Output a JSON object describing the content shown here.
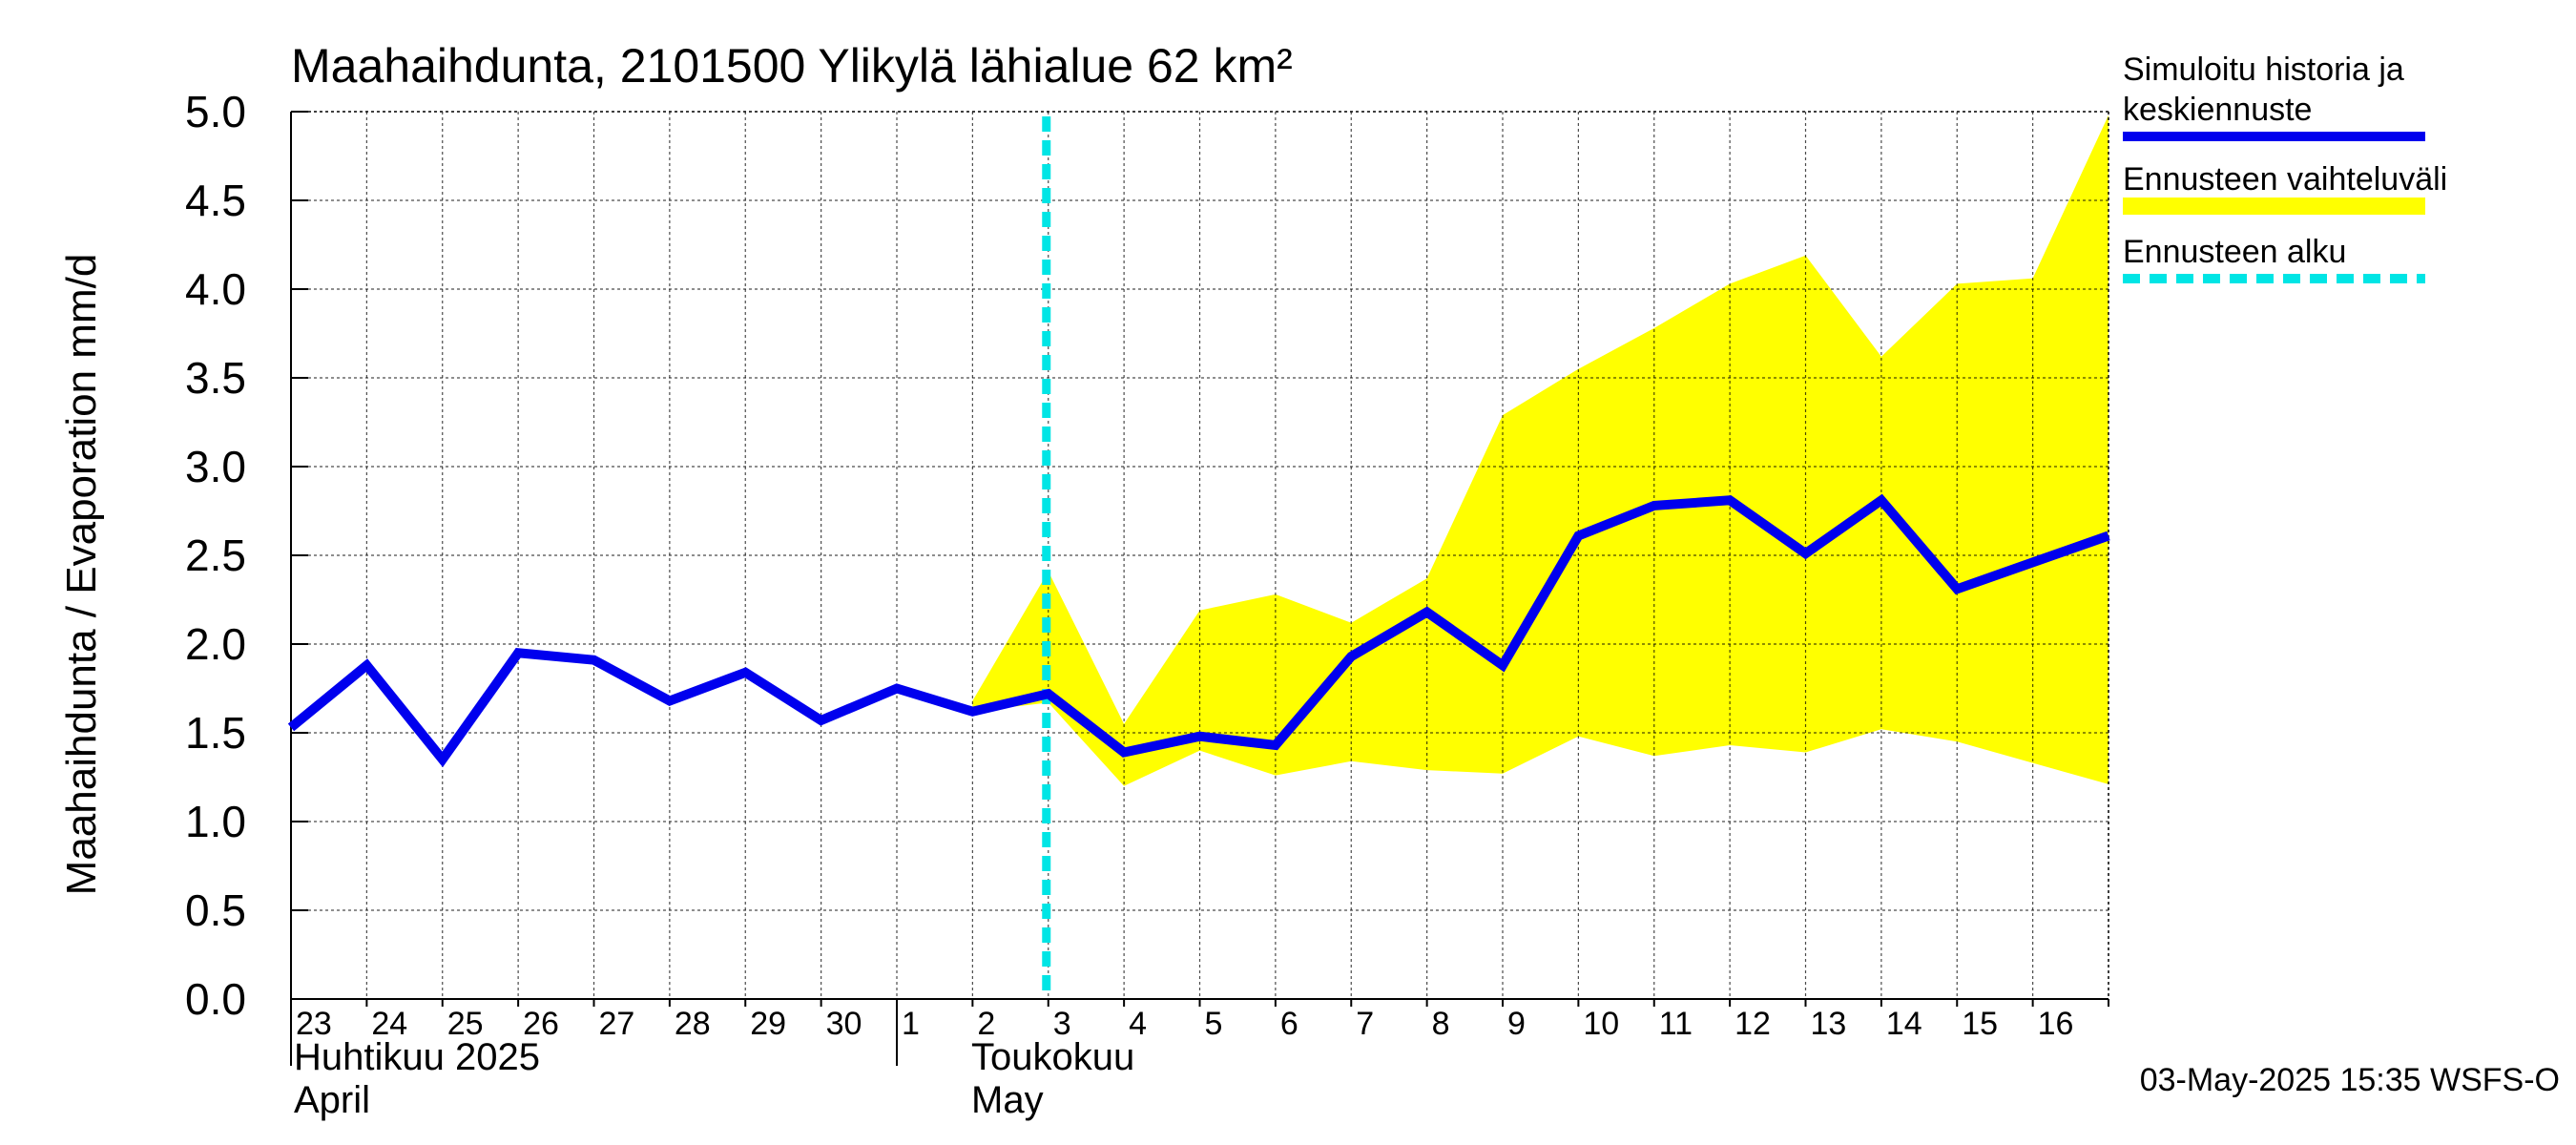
{
  "chart_data": {
    "type": "line",
    "title": "Maahaihdunta, 2101500 Ylikylä lähialue 62 km²",
    "ylabel": "Maahaihdunta / Evaporation   mm/d",
    "ylim": [
      0,
      5
    ],
    "yticks": [
      "0.0",
      "0.5",
      "1.0",
      "1.5",
      "2.0",
      "2.5",
      "3.0",
      "3.5",
      "4.0",
      "4.5",
      "5.0"
    ],
    "x_tick_labels": [
      "23",
      "24",
      "25",
      "26",
      "27",
      "28",
      "29",
      "30",
      "1",
      "2",
      "3",
      "4",
      "5",
      "6",
      "7",
      "8",
      "9",
      "10",
      "11",
      "12",
      "13",
      "14",
      "15",
      "16"
    ],
    "month_labels": [
      {
        "fi": "Huhtikuu  2025",
        "en": "April"
      },
      {
        "fi": "Toukokuu",
        "en": "May"
      }
    ],
    "grid": true,
    "legend_position": "right",
    "legend": {
      "history": "Simuloitu historia ja keskiennuste",
      "history_line1": "Simuloitu historia ja",
      "history_line2": "keskiennuste",
      "range": "Ennusteen vaihteluväli",
      "forecast_start": "Ennusteen alku"
    },
    "colors": {
      "history": "#0000ee",
      "range": "#ffff00",
      "forecast_start": "#00e5e5",
      "grid": "#808080"
    },
    "forecast_start_day": 10,
    "series": [
      {
        "name": "Simuloitu historia ja keskiennuste",
        "day": [
          0,
          1,
          2,
          3,
          4,
          5,
          6,
          7,
          8,
          9,
          10,
          11,
          12,
          13,
          14,
          15,
          16,
          17,
          18,
          19,
          20,
          21,
          22,
          23,
          24
        ],
        "values": [
          1.53,
          1.88,
          1.35,
          1.95,
          1.91,
          1.68,
          1.84,
          1.57,
          1.75,
          1.62,
          1.72,
          1.39,
          1.48,
          1.43,
          1.93,
          2.18,
          1.88,
          2.61,
          2.78,
          2.81,
          2.51,
          2.81,
          2.31,
          2.46,
          2.61
        ]
      }
    ],
    "range_band": {
      "name": "Ennusteen vaihteluväli",
      "day": [
        9,
        10,
        11,
        12,
        13,
        14,
        15,
        16,
        17,
        18,
        19,
        20,
        21,
        22,
        23,
        24
      ],
      "upper": [
        1.68,
        2.41,
        1.55,
        2.19,
        2.28,
        2.12,
        2.37,
        3.29,
        3.55,
        3.78,
        4.03,
        4.19,
        3.62,
        4.03,
        4.06,
        4.98
      ],
      "lower": [
        1.62,
        1.67,
        1.2,
        1.4,
        1.26,
        1.34,
        1.29,
        1.27,
        1.48,
        1.37,
        1.43,
        1.39,
        1.52,
        1.45,
        1.33,
        1.21
      ]
    }
  },
  "footer": {
    "timestamp": "03-May-2025 15:35 WSFS-O"
  }
}
